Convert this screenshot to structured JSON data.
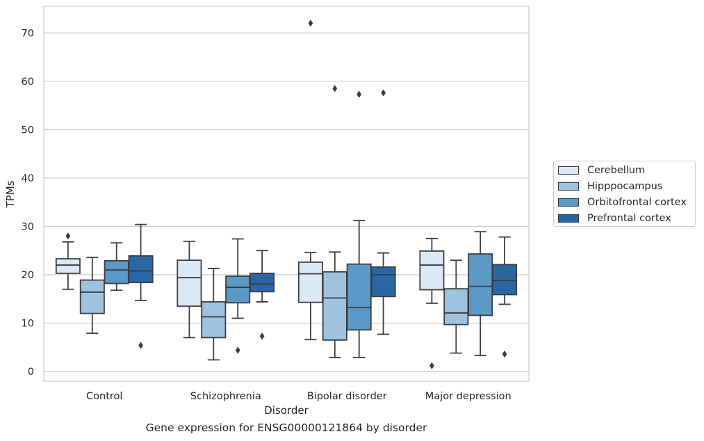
{
  "caption": "Gene expression for ENSG00000121864 by disorder",
  "chart_data": {
    "type": "box",
    "xlabel": "Disorder",
    "ylabel": "TPMs",
    "ylim": [
      -2,
      75.5
    ],
    "yticks": [
      0,
      10,
      20,
      30,
      40,
      50,
      60,
      70
    ],
    "grid": true,
    "legend_position": "right",
    "categories": [
      "Control",
      "Schizophrenia",
      "Bipolar disorder",
      "Major depression"
    ],
    "series": [
      {
        "name": "Cerebellum",
        "color": "#dbe8f5",
        "boxes": [
          {
            "whislo": 17.0,
            "q1": 20.3,
            "med": 22.0,
            "q3": 23.3,
            "whishi": 26.8,
            "fliers": [
              28.0
            ]
          },
          {
            "whislo": 7.0,
            "q1": 13.5,
            "med": 19.4,
            "q3": 23.0,
            "whishi": 26.9,
            "fliers": []
          },
          {
            "whislo": 6.6,
            "q1": 14.3,
            "med": 20.2,
            "q3": 22.6,
            "whishi": 24.6,
            "fliers": [
              72.0
            ]
          },
          {
            "whislo": 14.1,
            "q1": 16.9,
            "med": 22.0,
            "q3": 24.9,
            "whishi": 27.5,
            "fliers": [
              1.2
            ]
          }
        ]
      },
      {
        "name": "Hipppocampus",
        "color": "#9ec3de",
        "boxes": [
          {
            "whislo": 7.9,
            "q1": 12.0,
            "med": 16.4,
            "q3": 18.9,
            "whishi": 23.6,
            "fliers": []
          },
          {
            "whislo": 2.4,
            "q1": 7.0,
            "med": 11.3,
            "q3": 14.4,
            "whishi": 21.3,
            "fliers": []
          },
          {
            "whislo": 2.9,
            "q1": 6.5,
            "med": 15.2,
            "q3": 20.6,
            "whishi": 24.7,
            "fliers": [
              58.5
            ]
          },
          {
            "whislo": 3.8,
            "q1": 9.7,
            "med": 12.1,
            "q3": 17.1,
            "whishi": 23.0,
            "fliers": []
          }
        ]
      },
      {
        "name": "Orbitofrontal cortex",
        "color": "#5b99c7",
        "boxes": [
          {
            "whislo": 16.8,
            "q1": 18.2,
            "med": 21.0,
            "q3": 22.9,
            "whishi": 26.6,
            "fliers": []
          },
          {
            "whislo": 11.0,
            "q1": 14.2,
            "med": 17.4,
            "q3": 19.7,
            "whishi": 27.4,
            "fliers": [
              4.4
            ]
          },
          {
            "whislo": 2.9,
            "q1": 8.6,
            "med": 13.2,
            "q3": 22.2,
            "whishi": 31.2,
            "fliers": [
              57.3
            ]
          },
          {
            "whislo": 3.3,
            "q1": 11.6,
            "med": 17.6,
            "q3": 24.3,
            "whishi": 28.9,
            "fliers": []
          }
        ]
      },
      {
        "name": "Prefrontal cortex",
        "color": "#2a67a5",
        "boxes": [
          {
            "whislo": 14.7,
            "q1": 18.4,
            "med": 20.8,
            "q3": 23.9,
            "whishi": 30.4,
            "fliers": [
              5.4
            ]
          },
          {
            "whislo": 14.4,
            "q1": 16.5,
            "med": 18.1,
            "q3": 20.3,
            "whishi": 25.0,
            "fliers": [
              7.3
            ]
          },
          {
            "whislo": 7.7,
            "q1": 15.5,
            "med": 20.0,
            "q3": 21.6,
            "whishi": 24.5,
            "fliers": [
              57.6
            ]
          },
          {
            "whislo": 13.9,
            "q1": 15.9,
            "med": 18.8,
            "q3": 22.1,
            "whishi": 27.8,
            "fliers": [
              3.6
            ]
          }
        ]
      }
    ]
  }
}
